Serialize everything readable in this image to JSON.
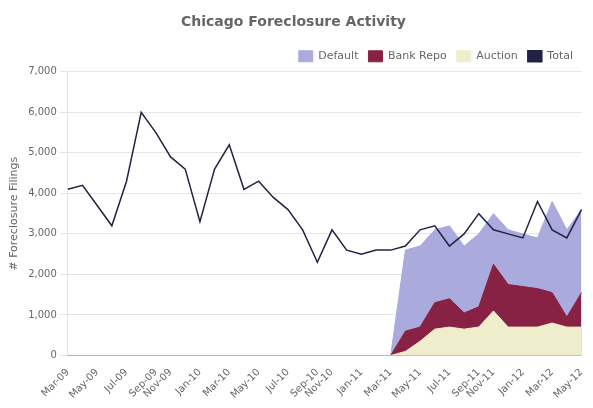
{
  "chart_data": {
    "type": "area",
    "title": "Chicago Foreclosure Activity",
    "ylabel": "# Foreclosure Filings",
    "categories": [
      "Mar-09",
      null,
      "May-09",
      null,
      "Jul-09",
      null,
      "Sep-09",
      "Nov-09",
      null,
      "Jan-10",
      null,
      "Mar-10",
      null,
      "May-10",
      null,
      "Jul-10",
      null,
      "Sep-10",
      "Nov-10",
      null,
      "Jan-11",
      null,
      "Mar-11",
      null,
      "May-11",
      null,
      "Jul-11",
      null,
      "Sep-11",
      "Nov-11",
      null,
      "Jan-12",
      null,
      "Mar-12",
      null,
      "May-12"
    ],
    "series": [
      {
        "name": "Default",
        "color": "#aaaadd",
        "type": "area",
        "values": [
          0,
          0,
          0,
          0,
          0,
          0,
          0,
          0,
          0,
          0,
          0,
          0,
          0,
          0,
          0,
          0,
          0,
          0,
          0,
          0,
          0,
          0,
          0,
          2600,
          2700,
          3100,
          3200,
          2700,
          3000,
          3500,
          3100,
          3000,
          2900,
          3800,
          3100,
          3600
        ]
      },
      {
        "name": "Bank Repo",
        "color": "#882244",
        "type": "area",
        "values": [
          0,
          0,
          0,
          0,
          0,
          0,
          0,
          0,
          0,
          0,
          0,
          0,
          0,
          0,
          0,
          0,
          0,
          0,
          0,
          0,
          0,
          0,
          0,
          600,
          700,
          1300,
          1400,
          1050,
          1200,
          2250,
          1750,
          1700,
          1650,
          1550,
          950,
          1550
        ]
      },
      {
        "name": "Auction",
        "color": "#eeeecc",
        "type": "area",
        "values": [
          0,
          0,
          0,
          0,
          0,
          0,
          0,
          0,
          0,
          0,
          0,
          0,
          0,
          0,
          0,
          0,
          0,
          0,
          0,
          0,
          0,
          0,
          0,
          100,
          350,
          650,
          700,
          650,
          700,
          1100,
          700,
          700,
          700,
          800,
          700,
          700
        ]
      },
      {
        "name": "Total",
        "color": "#222244",
        "type": "line",
        "values": [
          4100,
          4200,
          3700,
          3200,
          4300,
          6000,
          5500,
          4900,
          4600,
          3300,
          4600,
          5200,
          4100,
          4300,
          3900,
          3600,
          3100,
          2300,
          3100,
          2600,
          2500,
          2600,
          2600,
          2700,
          3100,
          3200,
          2700,
          3000,
          3500,
          3100,
          3000,
          2900,
          3800,
          3100,
          2900,
          3600
        ]
      }
    ],
    "ylim": [
      0,
      7000
    ],
    "yticks": [
      0,
      1000,
      2000,
      3000,
      4000,
      5000,
      6000,
      7000
    ],
    "grid": true,
    "legend": "upper right"
  }
}
